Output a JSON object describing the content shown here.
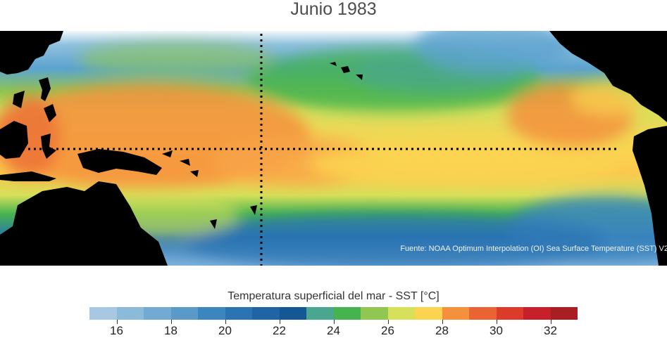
{
  "title": "Junio 1983",
  "source_text": "Fuente: NOAA Optimum Interpolation (OI) Sea Surface Temperature (SST) V2",
  "colorbar": {
    "label": "Temperatura superficial del mar - SST  [°C]",
    "min": 15,
    "max": 33,
    "tick_values": [
      16,
      18,
      20,
      22,
      24,
      26,
      28,
      30,
      32
    ],
    "tick_labels": [
      "16",
      "18",
      "20",
      "22",
      "24",
      "26",
      "28",
      "30",
      "32"
    ],
    "colors": [
      "#a6c8e3",
      "#8cbad9",
      "#72aad1",
      "#5b9ac8",
      "#3c86bf",
      "#2a74b2",
      "#1f65a6",
      "#135894",
      "#4aa68e",
      "#46b34f",
      "#8fc751",
      "#d6e05a",
      "#fbd451",
      "#f5903c",
      "#ea6332",
      "#dc3a2b",
      "#c8202a",
      "#a91e25"
    ]
  },
  "map": {
    "region": "Pacífico tropical",
    "reference_lines": [
      "equator",
      "meridian"
    ],
    "land_color": "#000000"
  }
}
